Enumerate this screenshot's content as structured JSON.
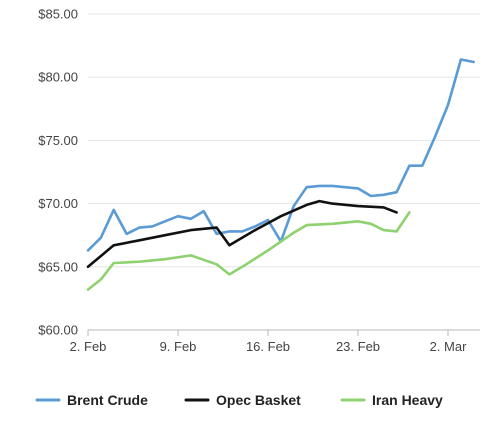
{
  "chart_data": {
    "type": "line",
    "title": "",
    "xlabel": "",
    "ylabel": "",
    "x_start": "2026-02-02",
    "x_end": "2026-03-03",
    "x_ticks": [
      {
        "date": "2026-02-02",
        "label": "2. Feb"
      },
      {
        "date": "2026-02-09",
        "label": "9. Feb"
      },
      {
        "date": "2026-02-16",
        "label": "16. Feb"
      },
      {
        "date": "2026-02-23",
        "label": "23. Feb"
      },
      {
        "date": "2026-03-02",
        "label": "2. Mar"
      }
    ],
    "ylim": [
      60,
      85
    ],
    "y_ticks": [
      {
        "value": 60,
        "label": "$60.00"
      },
      {
        "value": 65,
        "label": "$65.00"
      },
      {
        "value": 70,
        "label": "$70.00"
      },
      {
        "value": 75,
        "label": "$75.00"
      },
      {
        "value": 80,
        "label": "$80.00"
      },
      {
        "value": 85,
        "label": "$85.00"
      }
    ],
    "grid": {
      "horizontal": true,
      "vertical": false
    },
    "legend_position": "bottom",
    "series": [
      {
        "name": "Brent Crude",
        "color": "#5b9bd5",
        "points": [
          [
            "2026-02-02",
            66.3
          ],
          [
            "2026-02-03",
            67.3
          ],
          [
            "2026-02-04",
            69.5
          ],
          [
            "2026-02-05",
            67.6
          ],
          [
            "2026-02-06",
            68.1
          ],
          [
            "2026-02-07",
            68.2
          ],
          [
            "2026-02-08",
            68.6
          ],
          [
            "2026-02-09",
            69.0
          ],
          [
            "2026-02-10",
            68.8
          ],
          [
            "2026-02-11",
            69.4
          ],
          [
            "2026-02-12",
            67.6
          ],
          [
            "2026-02-13",
            67.8
          ],
          [
            "2026-02-14",
            67.8
          ],
          [
            "2026-02-15",
            68.2
          ],
          [
            "2026-02-16",
            68.7
          ],
          [
            "2026-02-17",
            67.0
          ],
          [
            "2026-02-18",
            69.8
          ],
          [
            "2026-02-19",
            71.3
          ],
          [
            "2026-02-20",
            71.4
          ],
          [
            "2026-02-21",
            71.4
          ],
          [
            "2026-02-22",
            71.3
          ],
          [
            "2026-02-23",
            71.2
          ],
          [
            "2026-02-24",
            70.6
          ],
          [
            "2026-02-25",
            70.7
          ],
          [
            "2026-02-26",
            70.9
          ],
          [
            "2026-02-27",
            73.0
          ],
          [
            "2026-02-28",
            73.0
          ],
          [
            "2026-03-01",
            75.3
          ],
          [
            "2026-03-02",
            77.8
          ],
          [
            "2026-03-03",
            81.4
          ],
          [
            "2026-03-04",
            81.2
          ]
        ]
      },
      {
        "name": "Opec Basket",
        "color": "#111111",
        "points": [
          [
            "2026-02-02",
            65.0
          ],
          [
            "2026-02-04",
            66.7
          ],
          [
            "2026-02-06",
            67.1
          ],
          [
            "2026-02-08",
            67.5
          ],
          [
            "2026-02-10",
            67.9
          ],
          [
            "2026-02-12",
            68.1
          ],
          [
            "2026-02-13",
            66.7
          ],
          [
            "2026-02-15",
            67.9
          ],
          [
            "2026-02-17",
            69.0
          ],
          [
            "2026-02-19",
            69.9
          ],
          [
            "2026-02-20",
            70.2
          ],
          [
            "2026-02-21",
            70.0
          ],
          [
            "2026-02-23",
            69.8
          ],
          [
            "2026-02-25",
            69.7
          ],
          [
            "2026-02-26",
            69.3
          ]
        ]
      },
      {
        "name": "Iran Heavy",
        "color": "#8fd16f",
        "points": [
          [
            "2026-02-02",
            63.2
          ],
          [
            "2026-02-03",
            64.0
          ],
          [
            "2026-02-04",
            65.3
          ],
          [
            "2026-02-06",
            65.4
          ],
          [
            "2026-02-08",
            65.6
          ],
          [
            "2026-02-10",
            65.9
          ],
          [
            "2026-02-12",
            65.2
          ],
          [
            "2026-02-13",
            64.4
          ],
          [
            "2026-02-14",
            65.0
          ],
          [
            "2026-02-16",
            66.3
          ],
          [
            "2026-02-17",
            67.0
          ],
          [
            "2026-02-18",
            67.7
          ],
          [
            "2026-02-19",
            68.3
          ],
          [
            "2026-02-21",
            68.4
          ],
          [
            "2026-02-23",
            68.6
          ],
          [
            "2026-02-24",
            68.4
          ],
          [
            "2026-02-25",
            67.9
          ],
          [
            "2026-02-26",
            67.8
          ],
          [
            "2026-02-27",
            69.3
          ]
        ]
      }
    ]
  }
}
